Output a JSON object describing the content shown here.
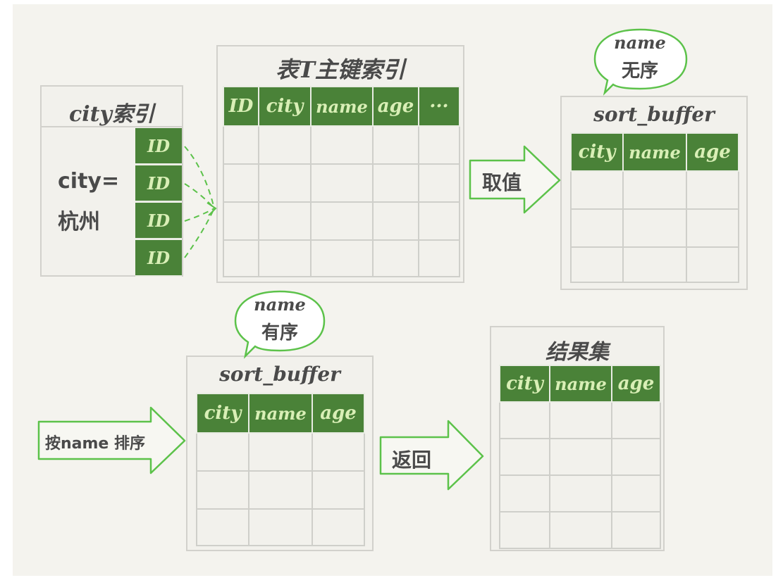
{
  "city_index": {
    "title": "city索引",
    "condition_line1": "city=",
    "condition_line2": "杭州",
    "ids": [
      "ID",
      "ID",
      "ID",
      "ID"
    ]
  },
  "primary_index": {
    "title": "表T主键索引",
    "columns": [
      "ID",
      "city",
      "name",
      "age",
      "···"
    ]
  },
  "sort_buffer_unsorted": {
    "bubble_line1": "name",
    "bubble_line2": "无序",
    "title": "sort_buffer",
    "columns": [
      "city",
      "name",
      "age"
    ]
  },
  "sort_buffer_sorted": {
    "bubble_line1": "name",
    "bubble_line2": "有序",
    "title": "sort_buffer",
    "columns": [
      "city",
      "name",
      "age"
    ]
  },
  "result_set": {
    "title": "结果集",
    "columns": [
      "city",
      "name",
      "age"
    ]
  },
  "arrows": {
    "fetch": "取值",
    "sort": "按name 排序",
    "return": "返回"
  },
  "colors": {
    "header_green": "#4a8238",
    "arrow_green": "#5cc24a",
    "box_border": "#d2d1cc"
  }
}
